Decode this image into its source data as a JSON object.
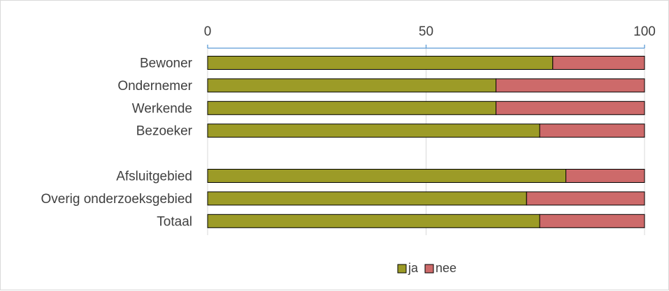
{
  "chart_data": {
    "type": "bar",
    "orientation": "horizontal",
    "stacked": true,
    "categories": [
      "Bewoner",
      "Ondernemer",
      "Werkende",
      "Bezoeker",
      "",
      "Afsluitgebied",
      "Overig onderzoeksgebied",
      "Totaal"
    ],
    "series": [
      {
        "name": "ja",
        "color": "#9c9b27",
        "values": [
          79,
          66,
          66,
          76,
          null,
          82,
          73,
          76
        ]
      },
      {
        "name": "nee",
        "color": "#cd6a6a",
        "values": [
          21,
          34,
          34,
          24,
          null,
          18,
          27,
          24
        ]
      }
    ],
    "xlim": [
      0,
      100
    ],
    "xticks": [
      "0",
      "50",
      "100"
    ],
    "xaxis_position": "top",
    "grid": true,
    "legend_position": "bottom"
  }
}
